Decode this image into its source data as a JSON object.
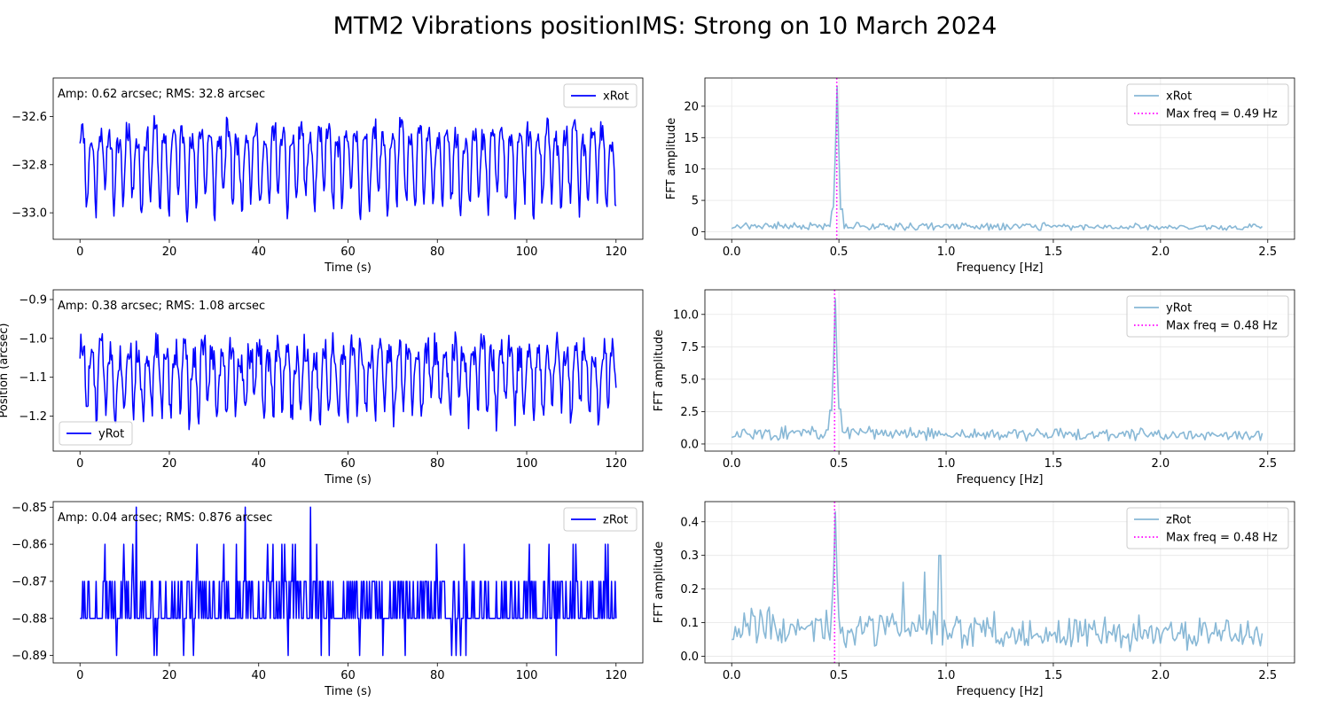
{
  "figure": {
    "title": "MTM2 Vibrations positionIMS: Strong on 10 March 2024"
  },
  "colors": {
    "time_series": "#0000ff",
    "fft": "#88b8d6",
    "max_freq_line": "#ff00ff",
    "grid": "#e6e6e6"
  },
  "chart_data": [
    {
      "type": "line",
      "id": "xrot-time",
      "series": [
        {
          "name": "xRot"
        }
      ],
      "xlabel": "Time (s)",
      "ylabel": "",
      "xlim": [
        -6,
        126
      ],
      "ylim": [
        -33.11,
        -32.44
      ],
      "xticks": [
        0,
        20,
        40,
        60,
        80,
        100,
        120
      ],
      "yticks": [
        -33.0,
        -32.8,
        -32.6
      ],
      "yticklabels": [
        "−33.0",
        "−32.8",
        "−32.6"
      ],
      "annotation": "Amp: 0.62 arcsec; RMS: 32.8 arcsec",
      "legend_loc": "upper right",
      "grid": false,
      "signal": {
        "duration": 120,
        "step": 0.2,
        "mean": -32.78,
        "amplitude": 0.14,
        "noise": 0.05,
        "base_freq": 0.49,
        "seed": 11,
        "min": -33.1,
        "max": -32.5
      }
    },
    {
      "type": "line",
      "id": "xrot-fft",
      "series": [
        {
          "name": "xRot"
        },
        {
          "name": "Max freq = 0.49 Hz"
        }
      ],
      "xlabel": "Frequency [Hz]",
      "ylabel": "FFT amplitude",
      "xlim": [
        -0.125,
        2.625
      ],
      "ylim": [
        -1.2,
        24.5
      ],
      "xticks": [
        0.0,
        0.5,
        1.0,
        1.5,
        2.0,
        2.5
      ],
      "xticklabels": [
        "0.0",
        "0.5",
        "1.0",
        "1.5",
        "2.0",
        "2.5"
      ],
      "yticks": [
        0,
        5,
        10,
        15,
        20
      ],
      "yticklabels": [
        "0",
        "5",
        "10",
        "15",
        "20"
      ],
      "max_freq": 0.49,
      "legend_loc": "upper right",
      "grid": true,
      "spectrum": {
        "fmax": 2.48,
        "df": 0.00833,
        "peak_freq": 0.49,
        "peak": 23.2,
        "floor": 1.0,
        "noise": 0.6,
        "seed": 21,
        "shoulder": 4.5
      }
    },
    {
      "type": "line",
      "id": "yrot-time",
      "series": [
        {
          "name": "yRot"
        }
      ],
      "xlabel": "Time (s)",
      "ylabel": "Position (arcsec)",
      "xlim": [
        -6,
        126
      ],
      "ylim": [
        -1.29,
        -0.875
      ],
      "xticks": [
        0,
        20,
        40,
        60,
        80,
        100,
        120
      ],
      "yticks": [
        -1.2,
        -1.1,
        -1.0,
        -0.9
      ],
      "yticklabels": [
        "−1.2",
        "−1.1",
        "−1.0",
        "−0.9"
      ],
      "annotation": "Amp: 0.38 arcsec; RMS: 1.08 arcsec",
      "legend_loc": "lower left",
      "grid": false,
      "signal": {
        "duration": 120,
        "step": 0.2,
        "mean": -1.09,
        "amplitude": 0.075,
        "noise": 0.04,
        "base_freq": 0.48,
        "seed": 33,
        "min": -1.27,
        "max": -0.89
      }
    },
    {
      "type": "line",
      "id": "yrot-fft",
      "series": [
        {
          "name": "yRot"
        },
        {
          "name": "Max freq = 0.48 Hz"
        }
      ],
      "xlabel": "Frequency [Hz]",
      "ylabel": "FFT amplitude",
      "xlim": [
        -0.125,
        2.625
      ],
      "ylim": [
        -0.55,
        11.9
      ],
      "xticks": [
        0.0,
        0.5,
        1.0,
        1.5,
        2.0,
        2.5
      ],
      "xticklabels": [
        "0.0",
        "0.5",
        "1.0",
        "1.5",
        "2.0",
        "2.5"
      ],
      "yticks": [
        0.0,
        2.5,
        5.0,
        7.5,
        10.0
      ],
      "yticklabels": [
        "0.0",
        "2.5",
        "5.0",
        "7.5",
        "10.0"
      ],
      "max_freq": 0.48,
      "legend_loc": "upper right",
      "grid": true,
      "spectrum": {
        "fmax": 2.48,
        "df": 0.00833,
        "peak_freq": 0.48,
        "peak": 11.2,
        "floor": 0.9,
        "noise": 0.45,
        "seed": 43,
        "shoulder": 3.1
      }
    },
    {
      "type": "line",
      "id": "zrot-time",
      "series": [
        {
          "name": "zRot"
        }
      ],
      "xlabel": "Time (s)",
      "ylabel": "",
      "xlim": [
        -6,
        126
      ],
      "ylim": [
        -0.892,
        -0.8485
      ],
      "xticks": [
        0,
        20,
        40,
        60,
        80,
        100,
        120
      ],
      "yticks": [
        -0.89,
        -0.88,
        -0.87,
        -0.86,
        -0.85
      ],
      "yticklabels": [
        "−0.89",
        "−0.88",
        "−0.87",
        "−0.86",
        "−0.85"
      ],
      "annotation": "Amp: 0.04 arcsec; RMS: 0.876 arcsec",
      "legend_loc": "upper right",
      "grid": false,
      "signal": {
        "duration": 120,
        "step": 0.2,
        "quantized": true,
        "levels": [
          -0.89,
          -0.88,
          -0.87,
          -0.86,
          -0.85
        ],
        "seed": 55
      }
    },
    {
      "type": "line",
      "id": "zrot-fft",
      "series": [
        {
          "name": "zRot"
        },
        {
          "name": "Max freq = 0.48 Hz"
        }
      ],
      "xlabel": "Frequency [Hz]",
      "ylabel": "FFT amplitude",
      "xlim": [
        -0.125,
        2.625
      ],
      "ylim": [
        -0.02,
        0.46
      ],
      "xticks": [
        0.0,
        0.5,
        1.0,
        1.5,
        2.0,
        2.5
      ],
      "xticklabels": [
        "0.0",
        "0.5",
        "1.0",
        "1.5",
        "2.0",
        "2.5"
      ],
      "yticks": [
        0.0,
        0.1,
        0.2,
        0.3,
        0.4
      ],
      "yticklabels": [
        "0.0",
        "0.1",
        "0.2",
        "0.3",
        "0.4"
      ],
      "max_freq": 0.48,
      "legend_loc": "upper right",
      "grid": true,
      "spectrum": {
        "fmax": 2.48,
        "df": 0.00833,
        "peak_freq": 0.48,
        "peak": 0.43,
        "floor": 0.09,
        "noise": 0.05,
        "seed": 65,
        "shoulder": 0.0,
        "extra_peaks": [
          [
            0.97,
            0.3
          ],
          [
            0.8,
            0.22
          ],
          [
            0.9,
            0.25
          ]
        ]
      }
    }
  ]
}
